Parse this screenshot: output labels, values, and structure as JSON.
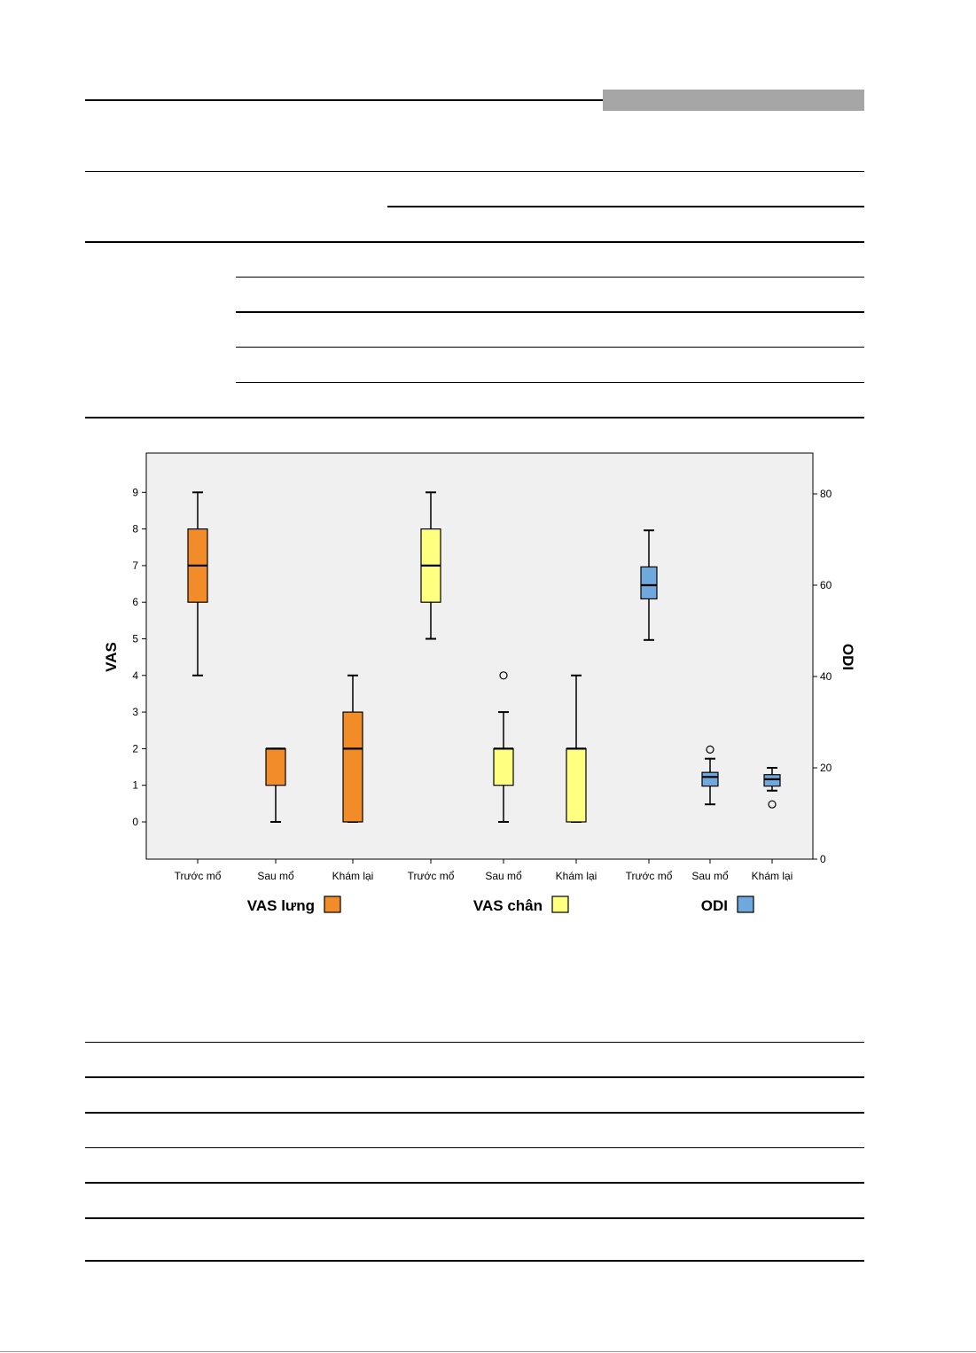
{
  "chart_data": {
    "type": "box",
    "left_axis": {
      "label": "VAS",
      "min": -1,
      "max": 10,
      "ticks": [
        0,
        1,
        2,
        3,
        4,
        5,
        6,
        7,
        8,
        9
      ]
    },
    "right_axis": {
      "label": "ODI",
      "min": 0,
      "max": 88,
      "ticks": [
        0,
        20,
        40,
        60,
        80
      ]
    },
    "categories": [
      "Trước mổ",
      "Sau mổ",
      "Khám lại",
      "Trước mổ",
      "Sau mổ",
      "Khám lại",
      "Trước mổ",
      "Sau mổ",
      "Khám lại"
    ],
    "groups": [
      {
        "name": "VAS lưng",
        "color": "#f28c28",
        "axis": "left",
        "boxes": [
          {
            "category": "Trước mổ",
            "whisker_low": 4,
            "q1": 6,
            "median": 7,
            "q3": 8,
            "whisker_high": 9,
            "outliers": []
          },
          {
            "category": "Sau mổ",
            "whisker_low": 0,
            "q1": 1,
            "median": 2,
            "q3": 2,
            "whisker_high": 2,
            "outliers": []
          },
          {
            "category": "Khám lại",
            "whisker_low": 0,
            "q1": 0,
            "median": 2,
            "q3": 3,
            "whisker_high": 4,
            "outliers": []
          }
        ]
      },
      {
        "name": "VAS chân",
        "color": "#ffff80",
        "axis": "left",
        "boxes": [
          {
            "category": "Trước mổ",
            "whisker_low": 5,
            "q1": 6,
            "median": 7,
            "q3": 8,
            "whisker_high": 9,
            "outliers": []
          },
          {
            "category": "Sau mổ",
            "whisker_low": 0,
            "q1": 1,
            "median": 2,
            "q3": 2,
            "whisker_high": 3,
            "outliers": [
              4
            ]
          },
          {
            "category": "Khám lại",
            "whisker_low": 0,
            "q1": 0,
            "median": 2,
            "q3": 2,
            "whisker_high": 4,
            "outliers": []
          }
        ]
      },
      {
        "name": "ODI",
        "color": "#6fa8dc",
        "axis": "right",
        "boxes": [
          {
            "category": "Trước mổ",
            "whisker_low": 48,
            "q1": 57,
            "median": 60,
            "q3": 64,
            "whisker_high": 72,
            "outliers": []
          },
          {
            "category": "Sau mổ",
            "whisker_low": 12,
            "q1": 16,
            "median": 18,
            "q3": 19,
            "whisker_high": 22,
            "outliers": [
              24
            ]
          },
          {
            "category": "Khám lại",
            "whisker_low": 15,
            "q1": 16,
            "median": 17.5,
            "q3": 18.5,
            "whisker_high": 20,
            "outliers": [
              12
            ]
          }
        ]
      }
    ],
    "legend": [
      "VAS lưng",
      "VAS chân",
      "ODI"
    ],
    "legend_position": "bottom",
    "background": "#f0f0f0"
  }
}
